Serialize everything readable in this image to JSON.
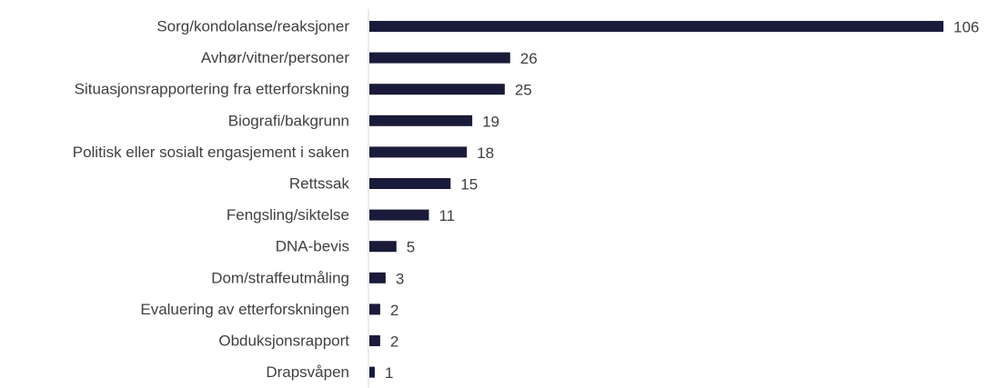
{
  "chart_data": {
    "type": "bar",
    "orientation": "horizontal",
    "title": "",
    "xlabel": "",
    "ylabel": "",
    "categories": [
      "Sorg/kondolanse/reaksjoner",
      "Avhør/vitner/personer",
      "Situasjonsrapportering fra etterforskning",
      "Biografi/bakgrunn",
      "Politisk eller sosialt engasjement i saken",
      "Rettssak",
      "Fengsling/siktelse",
      "DNA-bevis",
      "Dom/straffeutmåling",
      "Evaluering av etterforskningen",
      "Obduksjonsrapport",
      "Drapsvåpen"
    ],
    "values": [
      106,
      26,
      25,
      19,
      18,
      15,
      11,
      5,
      3,
      2,
      2,
      1
    ],
    "xlim": [
      0,
      106
    ],
    "grid": false,
    "legend": "none",
    "data_labels": true,
    "colors": {
      "bar": "#1a1a3a",
      "axis": "#d9d9d9",
      "category_text": "#404040",
      "value_text": "#404040"
    }
  }
}
